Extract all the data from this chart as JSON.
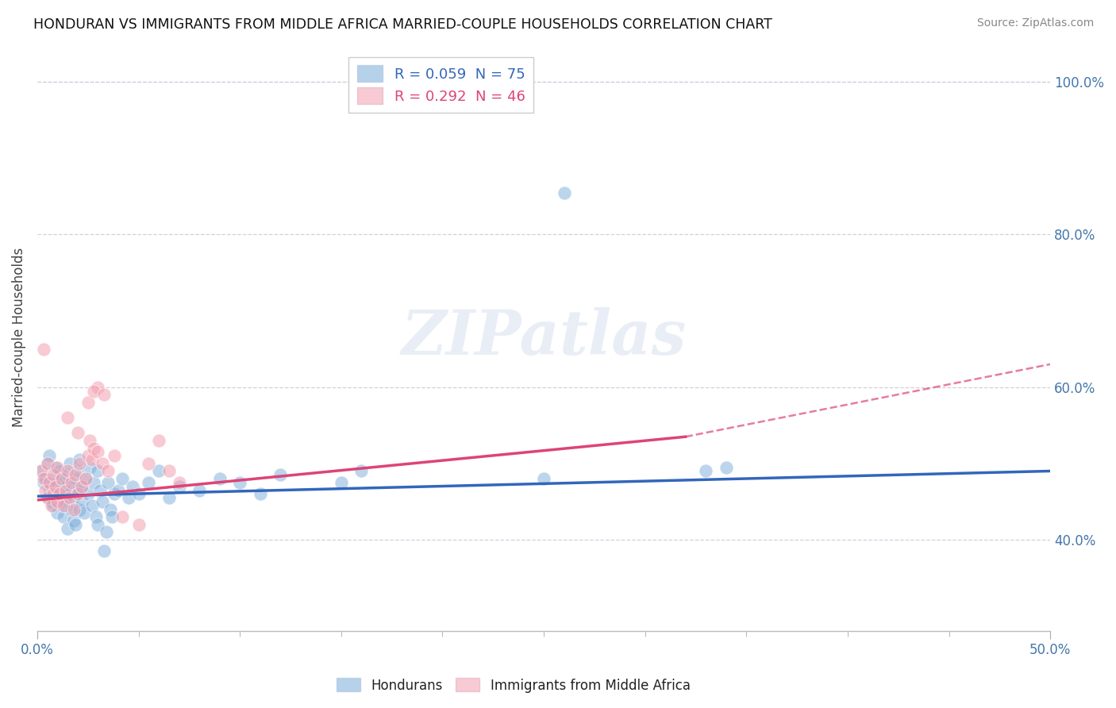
{
  "title": "HONDURAN VS IMMIGRANTS FROM MIDDLE AFRICA MARRIED-COUPLE HOUSEHOLDS CORRELATION CHART",
  "source": "Source: ZipAtlas.com",
  "ylabel": "Married-couple Households",
  "xlim": [
    0.0,
    0.5
  ],
  "ylim": [
    0.28,
    1.05
  ],
  "ytick_positions": [
    0.4,
    0.6,
    0.8,
    1.0
  ],
  "ytick_labels": [
    "40.0%",
    "60.0%",
    "80.0%",
    "100.0%"
  ],
  "grid_color": "#d0d0e0",
  "bg_color": "#ffffff",
  "watermark": "ZIPatlas",
  "legend_r1": "R = 0.059  N = 75",
  "legend_r2": "R = 0.292  N = 46",
  "blue_color": "#7aaddb",
  "pink_color": "#f4a0b0",
  "trendline_blue": "#3366bb",
  "trendline_pink": "#dd4477",
  "blue_scatter": [
    [
      0.002,
      0.49
    ],
    [
      0.003,
      0.475
    ],
    [
      0.004,
      0.48
    ],
    [
      0.005,
      0.5
    ],
    [
      0.005,
      0.455
    ],
    [
      0.006,
      0.465
    ],
    [
      0.006,
      0.51
    ],
    [
      0.007,
      0.47
    ],
    [
      0.007,
      0.45
    ],
    [
      0.008,
      0.48
    ],
    [
      0.008,
      0.445
    ],
    [
      0.009,
      0.495
    ],
    [
      0.009,
      0.46
    ],
    [
      0.01,
      0.475
    ],
    [
      0.01,
      0.435
    ],
    [
      0.011,
      0.49
    ],
    [
      0.011,
      0.455
    ],
    [
      0.012,
      0.465
    ],
    [
      0.012,
      0.48
    ],
    [
      0.013,
      0.45
    ],
    [
      0.013,
      0.43
    ],
    [
      0.014,
      0.47
    ],
    [
      0.014,
      0.445
    ],
    [
      0.015,
      0.485
    ],
    [
      0.015,
      0.415
    ],
    [
      0.016,
      0.46
    ],
    [
      0.016,
      0.5
    ],
    [
      0.017,
      0.44
    ],
    [
      0.017,
      0.47
    ],
    [
      0.018,
      0.455
    ],
    [
      0.018,
      0.425
    ],
    [
      0.019,
      0.48
    ],
    [
      0.019,
      0.42
    ],
    [
      0.02,
      0.465
    ],
    [
      0.02,
      0.49
    ],
    [
      0.021,
      0.44
    ],
    [
      0.021,
      0.505
    ],
    [
      0.022,
      0.45
    ],
    [
      0.022,
      0.47
    ],
    [
      0.023,
      0.435
    ],
    [
      0.024,
      0.48
    ],
    [
      0.025,
      0.46
    ],
    [
      0.026,
      0.495
    ],
    [
      0.027,
      0.445
    ],
    [
      0.028,
      0.475
    ],
    [
      0.029,
      0.43
    ],
    [
      0.03,
      0.49
    ],
    [
      0.03,
      0.42
    ],
    [
      0.031,
      0.465
    ],
    [
      0.032,
      0.45
    ],
    [
      0.033,
      0.385
    ],
    [
      0.034,
      0.41
    ],
    [
      0.035,
      0.475
    ],
    [
      0.036,
      0.44
    ],
    [
      0.037,
      0.43
    ],
    [
      0.038,
      0.46
    ],
    [
      0.04,
      0.465
    ],
    [
      0.042,
      0.48
    ],
    [
      0.045,
      0.455
    ],
    [
      0.047,
      0.47
    ],
    [
      0.05,
      0.46
    ],
    [
      0.055,
      0.475
    ],
    [
      0.06,
      0.49
    ],
    [
      0.065,
      0.455
    ],
    [
      0.07,
      0.47
    ],
    [
      0.08,
      0.465
    ],
    [
      0.09,
      0.48
    ],
    [
      0.1,
      0.475
    ],
    [
      0.11,
      0.46
    ],
    [
      0.12,
      0.485
    ],
    [
      0.15,
      0.475
    ],
    [
      0.16,
      0.49
    ],
    [
      0.25,
      0.48
    ],
    [
      0.33,
      0.49
    ],
    [
      0.26,
      0.855
    ],
    [
      0.34,
      0.495
    ]
  ],
  "pink_scatter": [
    [
      0.002,
      0.49
    ],
    [
      0.003,
      0.48
    ],
    [
      0.004,
      0.465
    ],
    [
      0.005,
      0.455
    ],
    [
      0.005,
      0.5
    ],
    [
      0.006,
      0.475
    ],
    [
      0.007,
      0.445
    ],
    [
      0.008,
      0.485
    ],
    [
      0.008,
      0.46
    ],
    [
      0.009,
      0.47
    ],
    [
      0.01,
      0.45
    ],
    [
      0.01,
      0.495
    ],
    [
      0.011,
      0.46
    ],
    [
      0.012,
      0.48
    ],
    [
      0.013,
      0.445
    ],
    [
      0.014,
      0.465
    ],
    [
      0.015,
      0.49
    ],
    [
      0.016,
      0.455
    ],
    [
      0.017,
      0.475
    ],
    [
      0.018,
      0.44
    ],
    [
      0.019,
      0.485
    ],
    [
      0.02,
      0.46
    ],
    [
      0.021,
      0.5
    ],
    [
      0.022,
      0.47
    ],
    [
      0.024,
      0.48
    ],
    [
      0.025,
      0.51
    ],
    [
      0.026,
      0.53
    ],
    [
      0.027,
      0.505
    ],
    [
      0.028,
      0.52
    ],
    [
      0.03,
      0.515
    ],
    [
      0.032,
      0.5
    ],
    [
      0.035,
      0.49
    ],
    [
      0.038,
      0.51
    ],
    [
      0.042,
      0.43
    ],
    [
      0.05,
      0.42
    ],
    [
      0.003,
      0.65
    ],
    [
      0.025,
      0.58
    ],
    [
      0.03,
      0.6
    ],
    [
      0.055,
      0.5
    ],
    [
      0.06,
      0.53
    ],
    [
      0.065,
      0.49
    ],
    [
      0.07,
      0.475
    ],
    [
      0.028,
      0.595
    ],
    [
      0.033,
      0.59
    ],
    [
      0.02,
      0.54
    ],
    [
      0.015,
      0.56
    ]
  ],
  "blue_trendline": [
    [
      0.0,
      0.457
    ],
    [
      0.5,
      0.49
    ]
  ],
  "pink_trendline_solid": [
    [
      0.0,
      0.452
    ],
    [
      0.32,
      0.535
    ]
  ],
  "pink_trendline_dashed": [
    [
      0.32,
      0.535
    ],
    [
      0.5,
      0.63
    ]
  ]
}
